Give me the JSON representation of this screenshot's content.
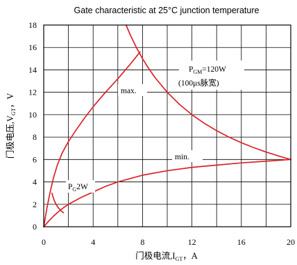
{
  "chart_data": {
    "type": "line",
    "title": "Gate characteristic at 25°C junction temperature",
    "xlabel": {
      "text": "门极电流,I",
      "sub": "GT",
      "suffix": "，A"
    },
    "ylabel": {
      "text": "门极电压,V",
      "sub": "GT",
      "suffix": "，V"
    },
    "xlim": [
      0,
      20
    ],
    "ylim": [
      0,
      18
    ],
    "xticks": [
      0,
      4,
      8,
      12,
      16,
      20
    ],
    "yticks": [
      0,
      2,
      4,
      6,
      8,
      10,
      12,
      14,
      16,
      18
    ],
    "grid": true,
    "line_color": "#d8232a",
    "series": [
      {
        "name": "max.",
        "x": [
          0,
          0.25,
          0.5,
          0.8,
          1.1,
          1.5,
          2,
          2.6,
          3.3,
          4,
          5,
          6,
          7,
          7.8
        ],
        "y": [
          0,
          1.6,
          3.0,
          4.4,
          5.5,
          6.6,
          7.6,
          8.6,
          9.7,
          10.7,
          12.0,
          13.2,
          14.5,
          15.6
        ]
      },
      {
        "name": "min.",
        "x": [
          0,
          0.4,
          0.8,
          1.2,
          1.6,
          2,
          3,
          4,
          5,
          6,
          8,
          10,
          12,
          14,
          16,
          18,
          20
        ],
        "y": [
          0,
          0.5,
          0.95,
          1.35,
          1.7,
          2.0,
          2.6,
          3.1,
          3.6,
          4.0,
          4.6,
          5.0,
          5.3,
          5.5,
          5.7,
          5.85,
          6.0
        ]
      },
      {
        "x": [
          6.67,
          7,
          7.5,
          8,
          8.5,
          9,
          10,
          11,
          12,
          13,
          14,
          15,
          16,
          17,
          18,
          19,
          20
        ],
        "y": [
          18,
          17.14,
          16,
          15,
          14.12,
          13.33,
          12,
          10.91,
          10,
          9.23,
          8.57,
          8,
          7.5,
          7.06,
          6.67,
          6.32,
          6
        ]
      },
      {
        "x": [
          0.67,
          0.75,
          0.85,
          1,
          1.2,
          1.4,
          1.6
        ],
        "y": [
          3,
          2.67,
          2.35,
          2,
          1.67,
          1.43,
          1.25
        ]
      }
    ],
    "annotations": {
      "pgm": {
        "p": "P",
        "sub": "GM",
        "rest": "=120W"
      },
      "pulse": "(100μs脉宽)",
      "pg": {
        "p": "P",
        "sub": "G",
        "rest": "2W"
      }
    }
  }
}
